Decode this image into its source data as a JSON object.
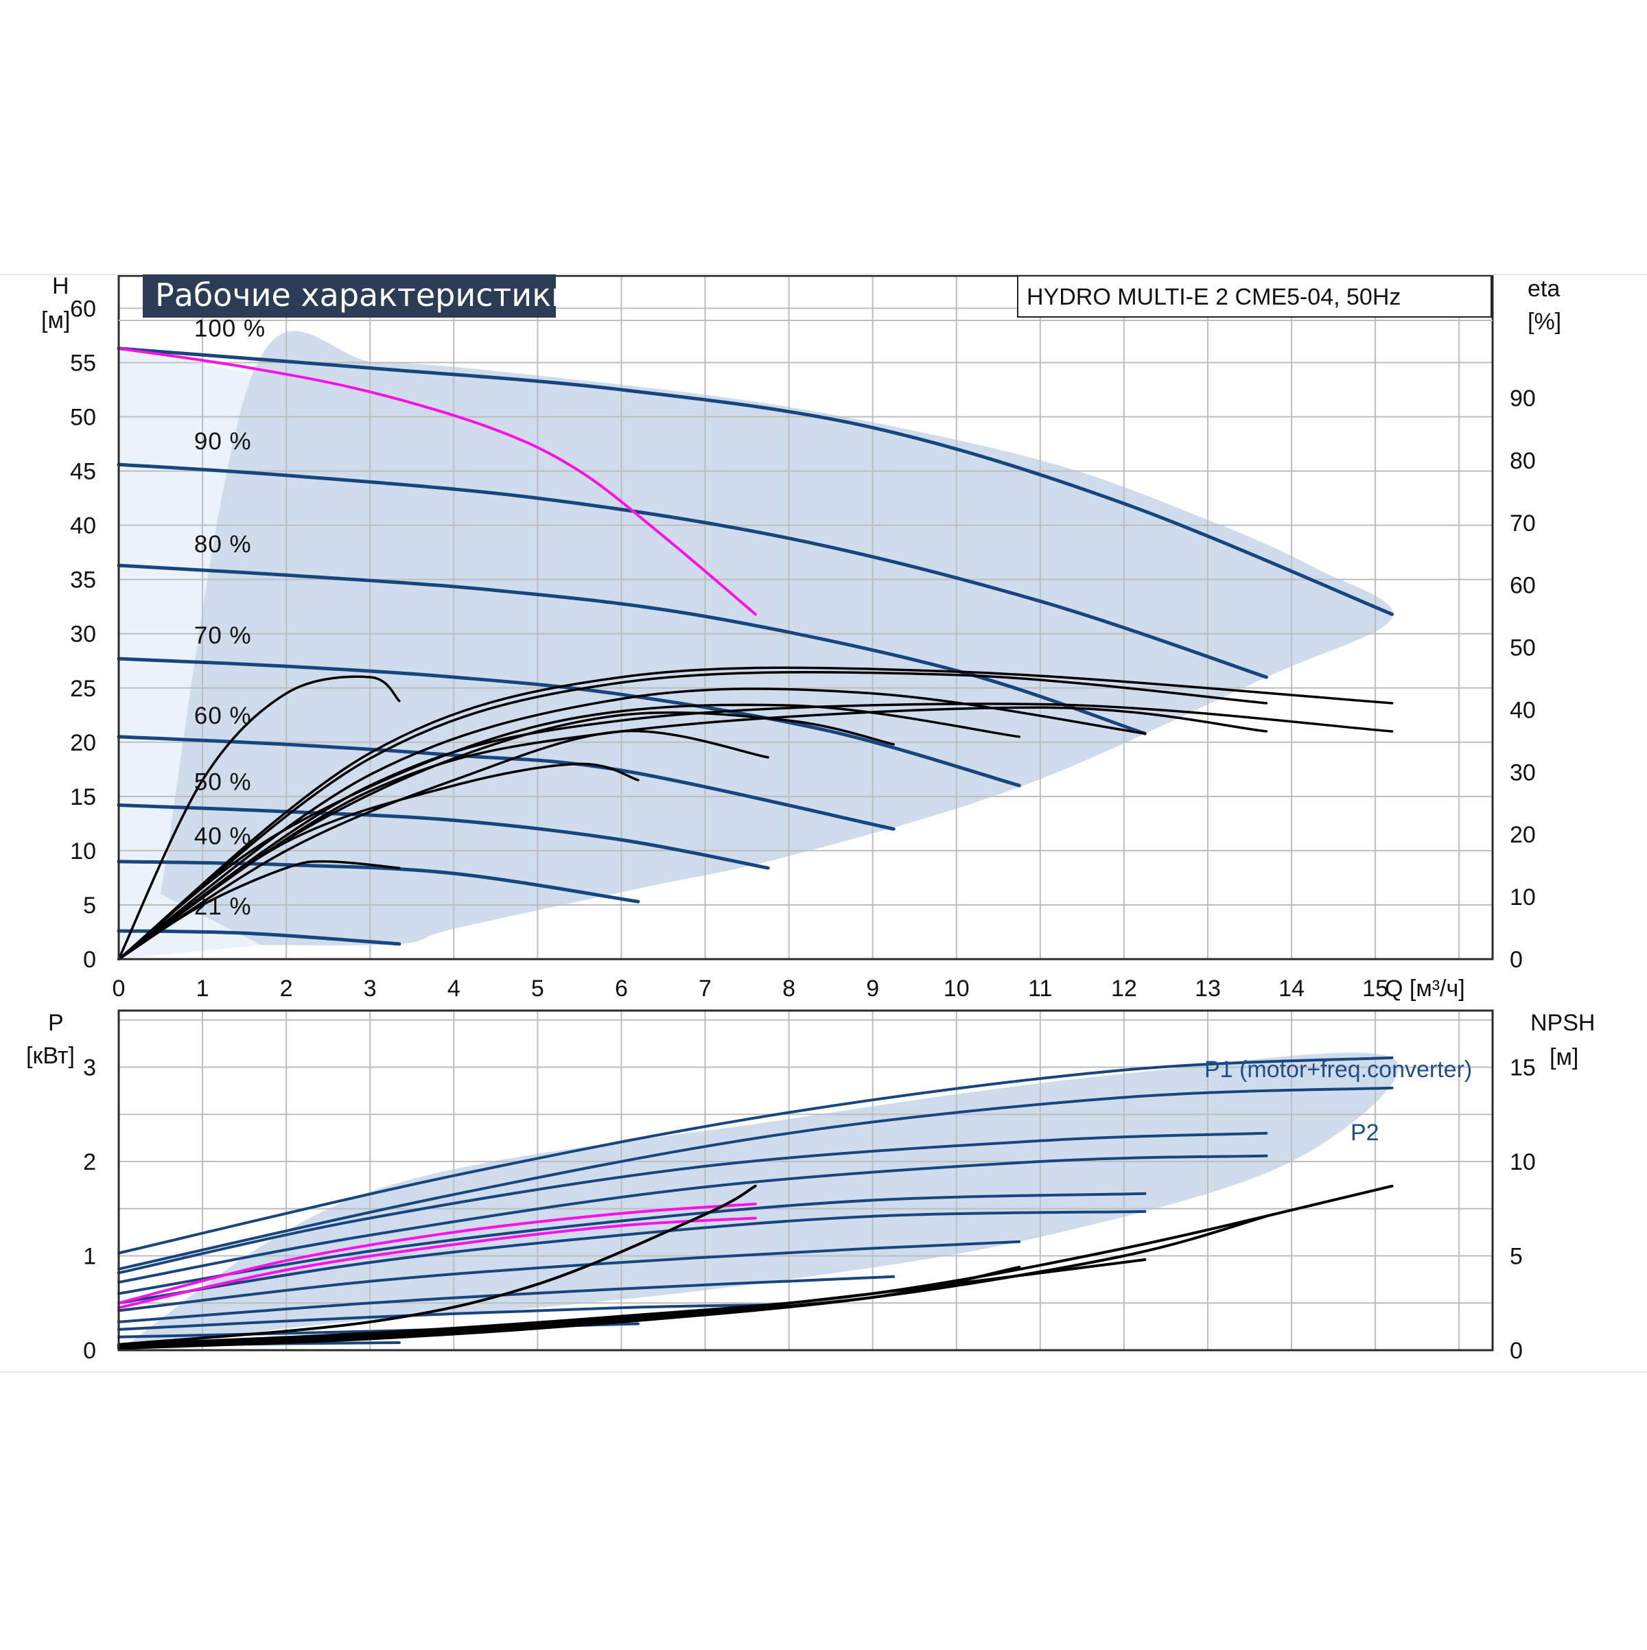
{
  "colors": {
    "grid": "#bdbdbd",
    "frame": "#2b2b2b",
    "region_fill": "#cfdcec",
    "region_light": "#eaf3fb",
    "curve_blue": "#17457e",
    "curve_black": "#000000",
    "system_curve": "#ff10e8",
    "title_bg": "#2a3d55",
    "text": "#111111"
  },
  "chart_data": [
    {
      "type": "line",
      "title": "Рабочие характеристики",
      "subtitle": "HYDRO MULTI-E 2 CME5-04, 50Hz",
      "xlabel": "Q [м³/ч]",
      "ylabel_unit": "H",
      "ylabel_dim": "[м]",
      "y2label_unit": "eta",
      "y2label_dim": "[%]",
      "xlim": [
        0,
        16.4
      ],
      "ylim": [
        0,
        63
      ],
      "y2lim": [
        0,
        109.6
      ],
      "x_ticks": [
        "0",
        "1",
        "2",
        "3",
        "4",
        "5",
        "6",
        "7",
        "8",
        "9",
        "10",
        "11",
        "12",
        "13",
        "14",
        "15"
      ],
      "y_ticks": [
        "0",
        "5",
        "10",
        "15",
        "20",
        "25",
        "30",
        "35",
        "40",
        "45",
        "50",
        "55",
        "60"
      ],
      "y2_ticks": [
        "0",
        "10",
        "20",
        "30",
        "40",
        "50",
        "60",
        "70",
        "80",
        "90"
      ],
      "grid": true,
      "speed_labels": [
        {
          "text": "100 %",
          "x": 0.9,
          "y": 57.4
        },
        {
          "text": "90 %",
          "x": 0.9,
          "y": 47.0
        },
        {
          "text": "80 %",
          "x": 0.9,
          "y": 37.5
        },
        {
          "text": "70 %",
          "x": 0.9,
          "y": 29.1
        },
        {
          "text": "60 %",
          "x": 0.9,
          "y": 21.7
        },
        {
          "text": "50 %",
          "x": 0.9,
          "y": 15.6
        },
        {
          "text": "40 %",
          "x": 0.9,
          "y": 10.6
        },
        {
          "text": "21 %",
          "x": 0.9,
          "y": 4.1
        }
      ],
      "region_envelope": {
        "x": [
          0.5,
          1.6,
          3.1,
          5.0,
          8.0,
          11.0,
          13.0,
          14.3,
          15.2,
          13.7,
          10.8,
          8.0,
          6.2,
          4.0,
          3.35,
          1.7
        ],
        "y": [
          6,
          54.0,
          55.0,
          53.8,
          50.9,
          46.0,
          40.5,
          36.0,
          31.5,
          26.0,
          16.0,
          9.5,
          6.5,
          2.8,
          1.4,
          1.3
        ]
      },
      "light_region": {
        "x": [
          0.0,
          0.0,
          1.6,
          1.7
        ],
        "y": [
          0.0,
          56.3,
          54.0,
          1.3
        ]
      },
      "series": [
        {
          "group": "head",
          "x": [
            0,
            3,
            6,
            9,
            12,
            15.2
          ],
          "y": [
            56.3,
            54.5,
            52.5,
            49.0,
            42.0,
            31.8
          ]
        },
        {
          "group": "head",
          "x": [
            0,
            2,
            5,
            8,
            11,
            13.7
          ],
          "y": [
            45.6,
            44.6,
            42.5,
            38.8,
            33.0,
            26.0
          ]
        },
        {
          "group": "head",
          "x": [
            0,
            2,
            4.5,
            7,
            10,
            12.25
          ],
          "y": [
            36.3,
            35.4,
            34.0,
            31.6,
            26.6,
            20.8
          ]
        },
        {
          "group": "head",
          "x": [
            0,
            2,
            4,
            6,
            8.5,
            10.75
          ],
          "y": [
            27.7,
            27.0,
            26.0,
            24.4,
            21.0,
            16.0
          ]
        },
        {
          "group": "head",
          "x": [
            0,
            2,
            4,
            6,
            9.25
          ],
          "y": [
            20.5,
            19.8,
            18.8,
            17.4,
            12.0
          ]
        },
        {
          "group": "head",
          "x": [
            0,
            2,
            4,
            6,
            7.75
          ],
          "y": [
            14.2,
            13.6,
            12.8,
            11.0,
            8.4
          ]
        },
        {
          "group": "head",
          "x": [
            0,
            2,
            4,
            6.2
          ],
          "y": [
            9.0,
            8.7,
            7.9,
            5.3
          ]
        },
        {
          "group": "head",
          "x": [
            0,
            1.5,
            3.35
          ],
          "y": [
            2.6,
            2.4,
            1.4
          ]
        },
        {
          "group": "system",
          "x": [
            0,
            1.5,
            3,
            4.5,
            5.5,
            6.5,
            7.6
          ],
          "y": [
            56.3,
            54.6,
            52.3,
            48.8,
            45.0,
            39.0,
            31.8
          ]
        },
        {
          "group": "eff",
          "x": [
            0,
            1,
            2,
            3,
            3.35
          ],
          "y": [
            0,
            16.5,
            24.5,
            26.0,
            23.8
          ]
        },
        {
          "group": "eff",
          "x": [
            0,
            1,
            2,
            2.5,
            3.35
          ],
          "y": [
            0,
            5.0,
            8.4,
            9.0,
            8.4
          ]
        },
        {
          "group": "eff",
          "x": [
            0,
            2,
            4,
            5.5,
            6.2
          ],
          "y": [
            0,
            10.8,
            16.0,
            18.0,
            16.5
          ]
        },
        {
          "group": "eff",
          "x": [
            0,
            2,
            4,
            6,
            7.75
          ],
          "y": [
            0,
            10.0,
            16.5,
            21.0,
            18.6
          ]
        },
        {
          "group": "eff",
          "x": [
            0,
            2,
            4,
            6,
            8,
            9.25
          ],
          "y": [
            0,
            11.0,
            18.5,
            22.5,
            22.0,
            19.8
          ]
        },
        {
          "group": "eff",
          "x": [
            0,
            2,
            5,
            8,
            10.75
          ],
          "y": [
            0,
            12.0,
            21.5,
            23.4,
            20.5
          ]
        },
        {
          "group": "eff",
          "x": [
            0,
            3,
            6,
            9,
            12.25
          ],
          "y": [
            0,
            17.0,
            24.0,
            24.5,
            20.8
          ]
        },
        {
          "group": "eff",
          "x": [
            0,
            3,
            6,
            10,
            13.7
          ],
          "y": [
            0,
            18.5,
            25.5,
            26.2,
            23.6
          ]
        },
        {
          "group": "eff",
          "x": [
            0,
            3,
            6,
            10,
            15.2
          ],
          "y": [
            0,
            19.0,
            26.0,
            26.5,
            23.6
          ]
        },
        {
          "group": "eff",
          "x": [
            0,
            3,
            6,
            11,
            15.2
          ],
          "y": [
            0,
            16.0,
            22.0,
            23.5,
            21.0
          ]
        },
        {
          "group": "eff",
          "x": [
            0,
            3,
            6,
            11,
            13.7
          ],
          "y": [
            0,
            15.5,
            21.0,
            23.2,
            21.0
          ]
        }
      ]
    },
    {
      "type": "line",
      "xlim": [
        0,
        16.4
      ],
      "ylim": [
        0,
        3.6
      ],
      "y2lim": [
        0,
        18.0
      ],
      "ylabel_unit": "P",
      "ylabel_dim": "[кВт]",
      "y2label_unit": "NPSH",
      "y2label_dim": "[м]",
      "y_ticks": [
        "0",
        "1",
        "2",
        "3"
      ],
      "y2_ticks": [
        "0",
        "5",
        "10",
        "15"
      ],
      "grid": true,
      "legend_p1": "P1 (motor+freq.converter)",
      "legend_p2": "P2",
      "region_envelope": {
        "x": [
          0.0,
          3.0,
          8.0,
          12.0,
          15.2,
          14.0,
          11.0,
          8.0,
          5.0,
          2.5,
          0.0
        ],
        "y": [
          0.0,
          1.68,
          2.45,
          2.93,
          3.1,
          2.0,
          1.2,
          0.75,
          0.45,
          0.28,
          0.0
        ]
      },
      "series": [
        {
          "group": "power",
          "x": [
            0,
            4,
            8,
            12,
            15.2
          ],
          "y": [
            1.03,
            1.85,
            2.52,
            2.97,
            3.1
          ]
        },
        {
          "group": "power",
          "x": [
            0,
            4,
            8,
            12,
            15.2
          ],
          "y": [
            0.86,
            1.65,
            2.3,
            2.68,
            2.78
          ]
        },
        {
          "group": "power",
          "x": [
            0,
            3,
            7,
            11,
            13.7
          ],
          "y": [
            0.82,
            1.4,
            1.95,
            2.22,
            2.3
          ]
        },
        {
          "group": "power",
          "x": [
            0,
            3,
            7,
            11,
            13.7
          ],
          "y": [
            0.72,
            1.22,
            1.73,
            2.0,
            2.06
          ]
        },
        {
          "group": "power",
          "x": [
            0,
            3,
            6,
            9,
            12.25
          ],
          "y": [
            0.6,
            1.05,
            1.37,
            1.59,
            1.66
          ]
        },
        {
          "group": "power",
          "x": [
            0,
            3,
            6,
            9,
            12.25
          ],
          "y": [
            0.5,
            0.93,
            1.22,
            1.42,
            1.47
          ]
        },
        {
          "group": "power",
          "x": [
            0,
            3,
            6,
            9,
            10.75
          ],
          "y": [
            0.42,
            0.73,
            0.93,
            1.08,
            1.15
          ]
        },
        {
          "group": "power",
          "x": [
            0,
            3,
            6,
            9.25
          ],
          "y": [
            0.3,
            0.5,
            0.65,
            0.78
          ]
        },
        {
          "group": "power",
          "x": [
            0,
            3,
            6,
            7.75
          ],
          "y": [
            0.22,
            0.35,
            0.45,
            0.48
          ]
        },
        {
          "group": "power",
          "x": [
            0,
            3,
            6.2
          ],
          "y": [
            0.14,
            0.2,
            0.28
          ]
        },
        {
          "group": "power",
          "x": [
            0,
            2,
            3.35
          ],
          "y": [
            0.04,
            0.07,
            0.08
          ]
        },
        {
          "group": "system",
          "x": [
            0,
            2,
            4,
            6,
            7.6
          ],
          "y": [
            0.5,
            0.95,
            1.25,
            1.45,
            1.55
          ]
        },
        {
          "group": "system",
          "x": [
            0,
            2,
            4,
            6,
            7.6
          ],
          "y": [
            0.45,
            0.85,
            1.12,
            1.32,
            1.4
          ]
        },
        {
          "group": "npsh",
          "x": [
            0,
            3,
            6,
            9,
            12,
            15.2
          ],
          "y2": [
            0.3,
            0.9,
            1.8,
            3.0,
            5.4,
            8.7
          ]
        },
        {
          "group": "npsh",
          "x": [
            0,
            3,
            6,
            9,
            12,
            13.7
          ],
          "y2": [
            0.2,
            0.8,
            1.7,
            2.8,
            5.0,
            7.1
          ]
        },
        {
          "group": "npsh",
          "x": [
            0,
            3,
            6,
            9,
            12.25
          ],
          "y2": [
            0.15,
            0.7,
            1.6,
            3.0,
            4.8
          ]
        },
        {
          "group": "npsh",
          "x": [
            0,
            3,
            6,
            9,
            10.75
          ],
          "y2": [
            0.1,
            0.6,
            1.5,
            2.8,
            4.4
          ]
        },
        {
          "group": "npsh",
          "x": [
            0,
            3,
            5,
            7,
            7.6
          ],
          "y2": [
            0.3,
            1.5,
            3.5,
            7.2,
            8.7
          ]
        }
      ]
    }
  ]
}
